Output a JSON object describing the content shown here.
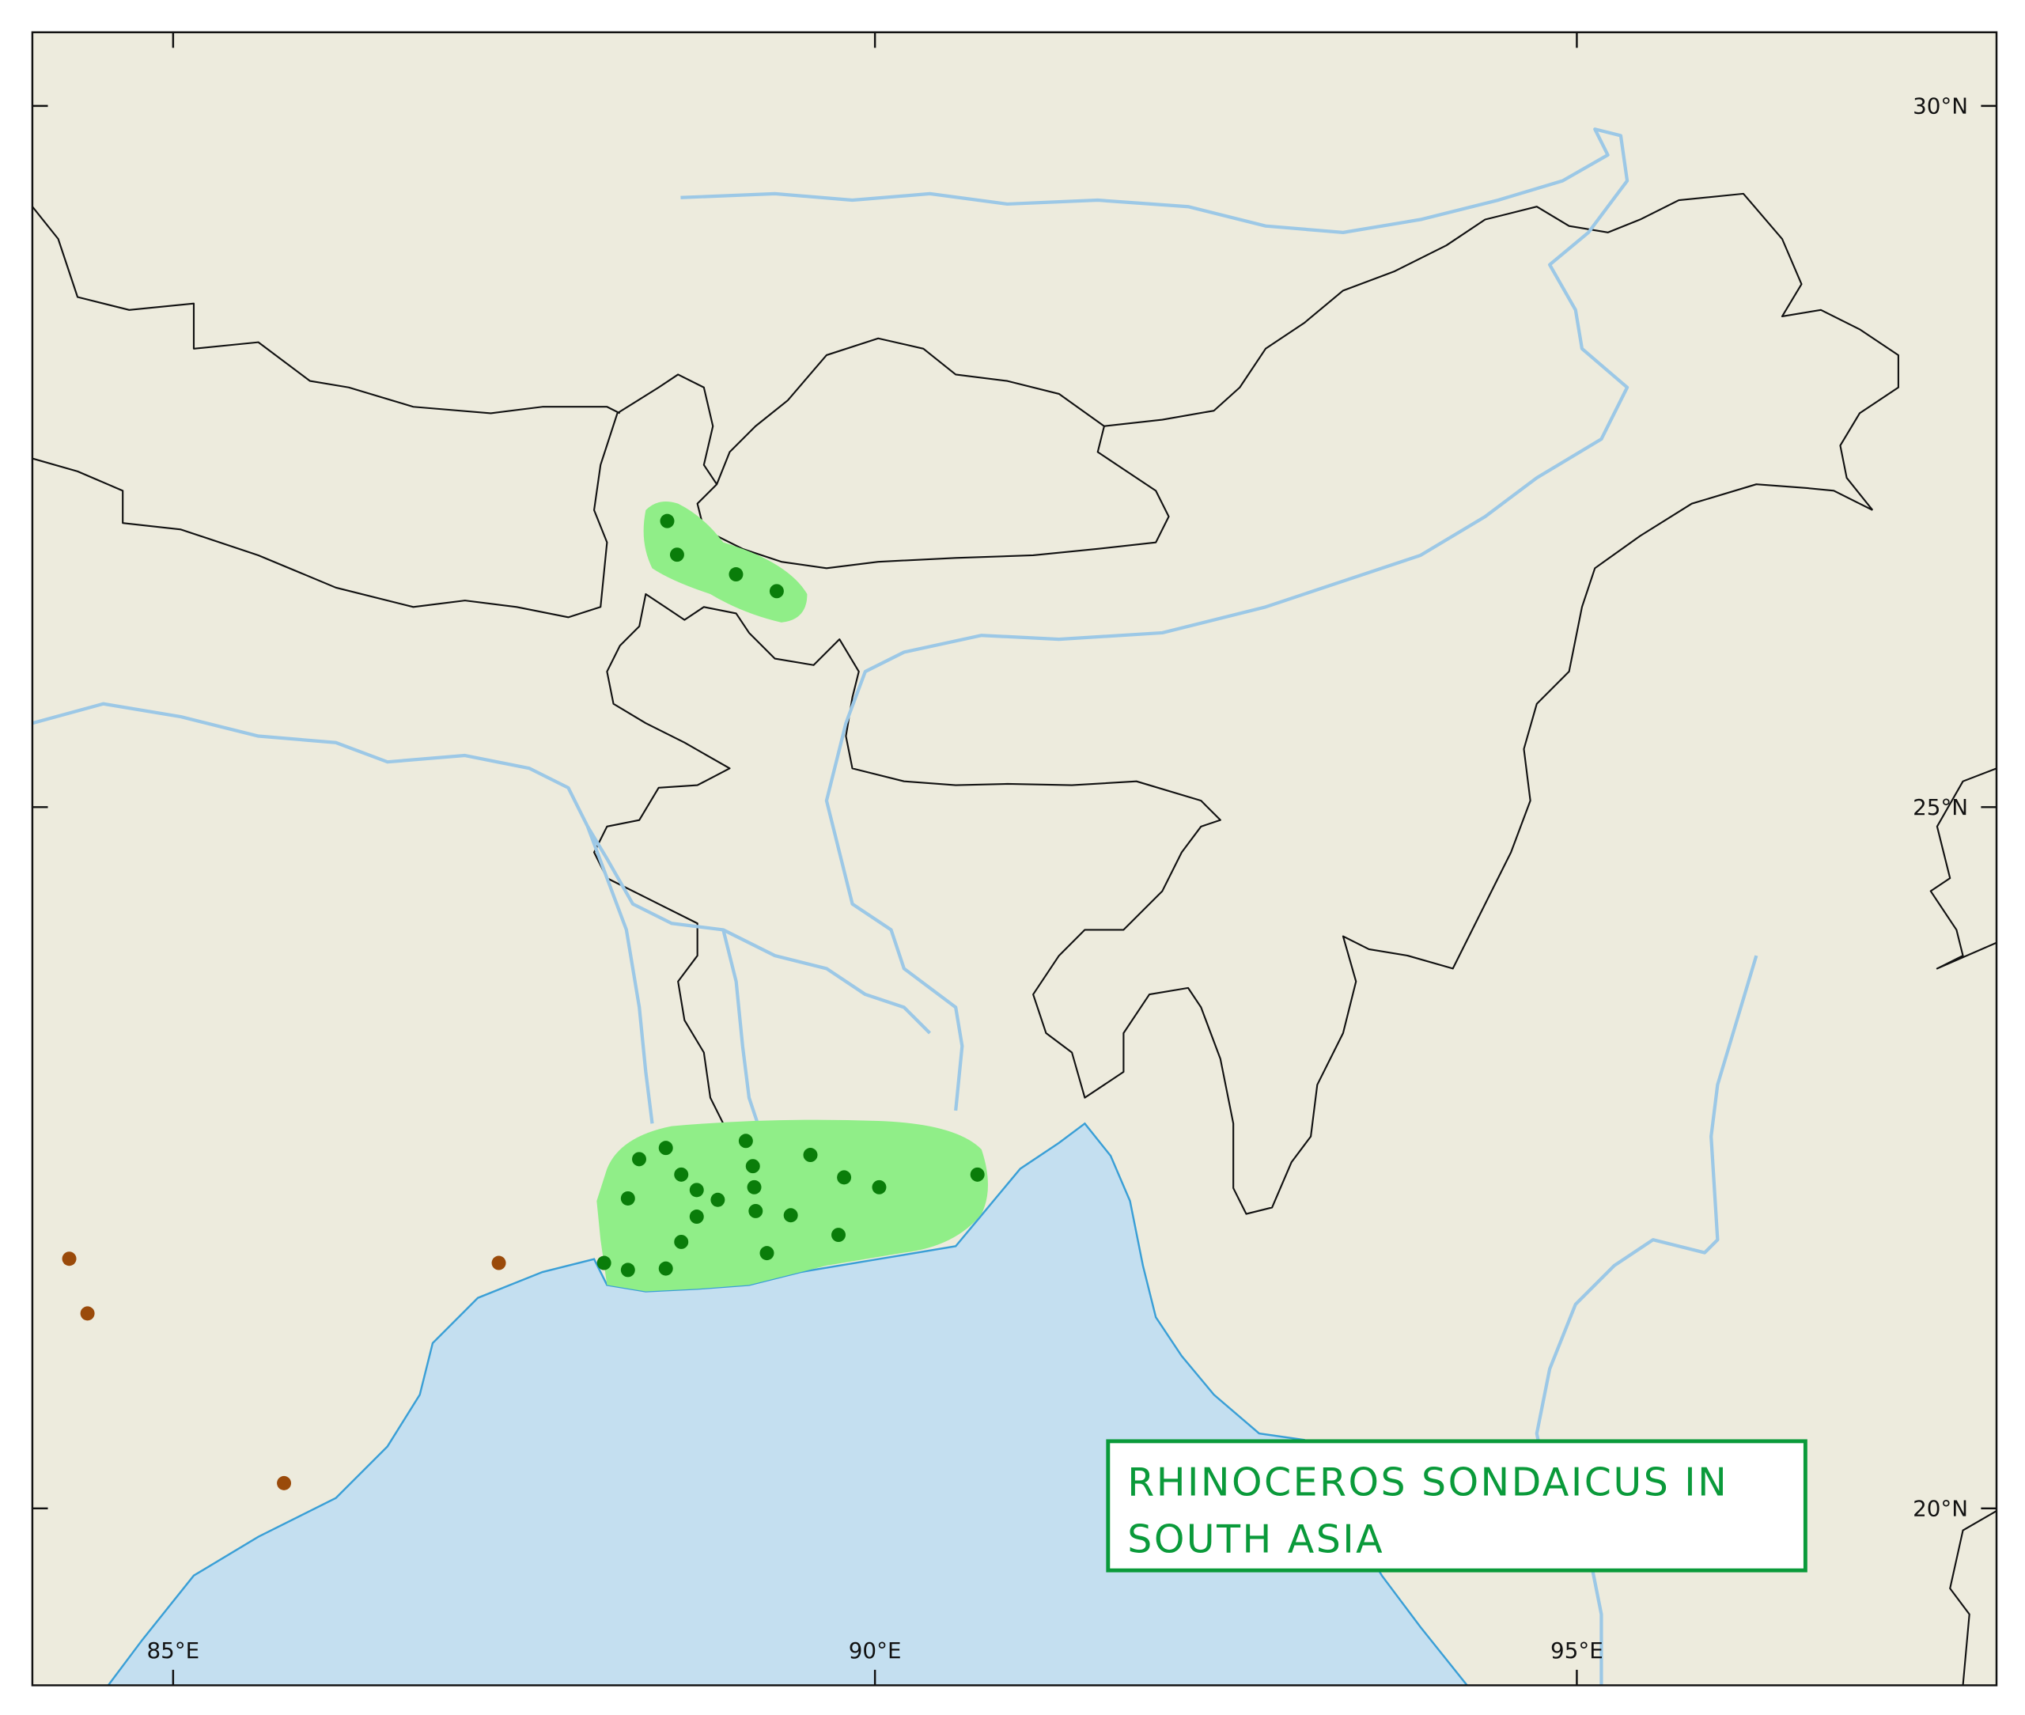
{
  "map": {
    "title_lines": [
      "RHINOCEROS SONDAICUS IN",
      "SOUTH ASIA"
    ],
    "longitude_ticks": [
      {
        "value": 85,
        "label": "85°E"
      },
      {
        "value": 90,
        "label": "90°E"
      },
      {
        "value": 95,
        "label": "95°E"
      }
    ],
    "latitude_ticks": [
      {
        "value": 30,
        "label": "30°N"
      },
      {
        "value": 25,
        "label": "25°N"
      },
      {
        "value": 20,
        "label": "20°N"
      }
    ],
    "extent": {
      "lon": [
        84.0,
        98.0
      ],
      "lat": [
        18.75,
        30.5
      ]
    },
    "colors": {
      "land": "#edebdd",
      "sea": "#c4dff0",
      "range_fill": "#90ee88",
      "present_dot": "#0a7d0a",
      "historic_dot": "#9a4a0a",
      "river": "#9cc8e6",
      "coast": "#3a9fd6",
      "title": "#0a9a3a"
    },
    "records_green": [
      [
        88.52,
        27.04
      ],
      [
        88.59,
        26.8
      ],
      [
        89.01,
        26.66
      ],
      [
        89.3,
        26.54
      ],
      [
        88.32,
        22.49
      ],
      [
        88.51,
        22.57
      ],
      [
        89.08,
        22.62
      ],
      [
        89.54,
        22.52
      ],
      [
        88.62,
        22.38
      ],
      [
        89.13,
        22.44
      ],
      [
        89.78,
        22.36
      ],
      [
        90.03,
        22.29
      ],
      [
        90.73,
        22.38
      ],
      [
        88.24,
        22.21
      ],
      [
        88.73,
        22.27
      ],
      [
        89.14,
        22.29
      ],
      [
        88.88,
        22.2
      ],
      [
        89.15,
        22.12
      ],
      [
        88.73,
        22.08
      ],
      [
        89.4,
        22.09
      ],
      [
        89.74,
        21.95
      ],
      [
        88.62,
        21.9
      ],
      [
        89.23,
        21.82
      ],
      [
        88.07,
        21.75
      ],
      [
        88.24,
        21.7
      ],
      [
        88.51,
        21.71
      ]
    ],
    "records_brown": [
      [
        84.26,
        21.78
      ],
      [
        84.39,
        21.39
      ],
      [
        87.32,
        21.75
      ],
      [
        85.79,
        20.18
      ]
    ]
  }
}
